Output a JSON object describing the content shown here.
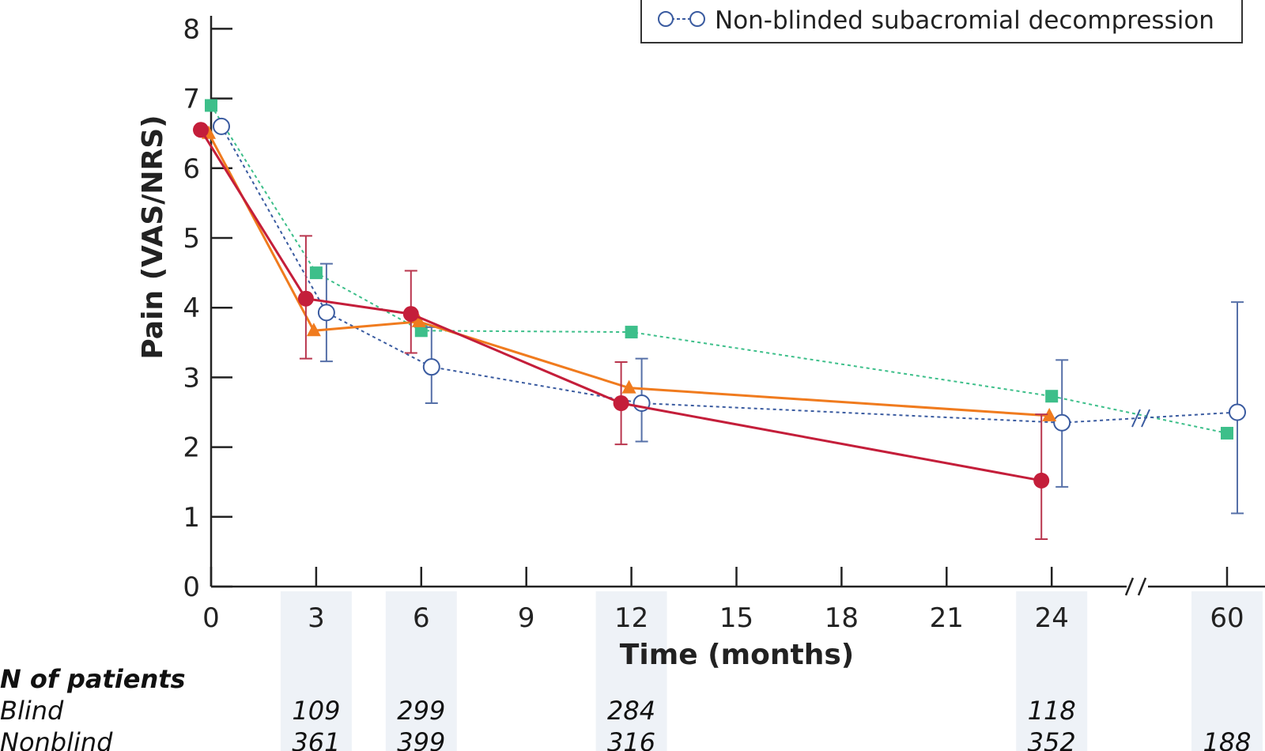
{
  "chart_data": {
    "type": "line",
    "ylabel": "Pain (VAS/NRS)",
    "xlabel": "Time (months)",
    "ylim": [
      0,
      8.5
    ],
    "y_ticks": [
      "0",
      "1",
      "2",
      "3",
      "4",
      "5",
      "6",
      "7",
      "8"
    ],
    "x_ticks": [
      "0",
      "3",
      "6",
      "9",
      "12",
      "15",
      "18",
      "21",
      "24",
      "60"
    ],
    "axis_break": "between 24 and 60 months",
    "legend_visible": [
      "Non-blinded subacromial decompression"
    ],
    "series": [
      {
        "key": "blinded_sad",
        "marker": "filled-circle",
        "color": "#c41e3a",
        "line": "solid",
        "points": [
          {
            "x": 0,
            "y": 6.55
          },
          {
            "x": 3,
            "y": 4.13,
            "err_lo": 3.27,
            "err_hi": 5.03
          },
          {
            "x": 6,
            "y": 3.91,
            "err_lo": 3.35,
            "err_hi": 4.53
          },
          {
            "x": 12,
            "y": 2.63,
            "err_lo": 2.04,
            "err_hi": 3.22
          },
          {
            "x": 24,
            "y": 1.52,
            "err_lo": 0.68,
            "err_hi": 2.47
          }
        ]
      },
      {
        "key": "blinded_placebo",
        "marker": "triangle",
        "color": "#f07b1e",
        "line": "solid",
        "points": [
          {
            "x": 0,
            "y": 6.5
          },
          {
            "x": 3,
            "y": 3.67
          },
          {
            "x": 6,
            "y": 3.8
          },
          {
            "x": 12,
            "y": 2.85
          },
          {
            "x": 24,
            "y": 2.45
          }
        ]
      },
      {
        "key": "nonblinded_physio",
        "marker": "filled-square",
        "color": "#3dbf8a",
        "line": "dotted",
        "points": [
          {
            "x": 0,
            "y": 6.9
          },
          {
            "x": 3,
            "y": 4.5
          },
          {
            "x": 6,
            "y": 3.67
          },
          {
            "x": 12,
            "y": 3.65
          },
          {
            "x": 24,
            "y": 2.73
          },
          {
            "x": 60,
            "y": 2.2
          }
        ]
      },
      {
        "name": "Non-blinded subacromial decompression",
        "key": "nonblinded_sad",
        "marker": "open-circle",
        "color": "#3a5ba0",
        "line": "dotted",
        "points": [
          {
            "x": 0,
            "y": 6.6
          },
          {
            "x": 3,
            "y": 3.93,
            "err_lo": 3.23,
            "err_hi": 4.63
          },
          {
            "x": 6,
            "y": 3.15,
            "err_lo": 2.63,
            "err_hi": 3.72
          },
          {
            "x": 12,
            "y": 2.63,
            "err_lo": 2.08,
            "err_hi": 3.27
          },
          {
            "x": 24,
            "y": 2.35,
            "err_lo": 1.43,
            "err_hi": 3.25
          },
          {
            "x": 60,
            "y": 2.5,
            "err_lo": 1.05,
            "err_hi": 4.08
          }
        ]
      }
    ],
    "n_patients": {
      "heading": "N of patients",
      "rows": [
        {
          "label": "Blind",
          "values": {
            "3": "109",
            "6": "299",
            "12": "284",
            "24": "118"
          }
        },
        {
          "label": "Nonblind",
          "values": {
            "3": "361",
            "6": "399",
            "12": "316",
            "24": "352",
            "60": "188"
          }
        }
      ]
    }
  }
}
